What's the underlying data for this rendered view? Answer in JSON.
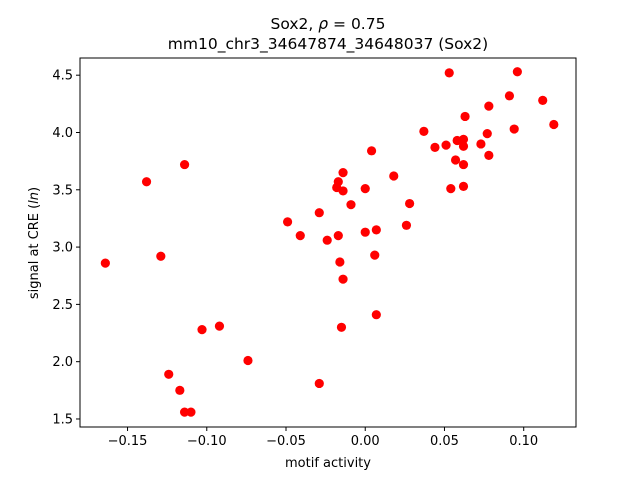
{
  "chart_data": {
    "type": "scatter",
    "title_prefix": "Sox2, ",
    "title_rho_symbol": "ρ",
    "title_rho_value": " = 0.75",
    "subtitle": "mm10_chr3_34647874_34648037 (Sox2)",
    "xlabel": "motif activity",
    "ylabel_prefix": "signal at CRE (",
    "ylabel_italic": "ln",
    "ylabel_suffix": ")",
    "xlim": [
      -0.18,
      0.133
    ],
    "ylim": [
      1.43,
      4.65
    ],
    "xticks": [
      {
        "value": -0.15,
        "label": "−0.15"
      },
      {
        "value": -0.1,
        "label": "−0.10"
      },
      {
        "value": -0.05,
        "label": "−0.05"
      },
      {
        "value": 0.0,
        "label": "0.00"
      },
      {
        "value": 0.05,
        "label": "0.05"
      },
      {
        "value": 0.1,
        "label": "0.10"
      }
    ],
    "yticks": [
      {
        "value": 1.5,
        "label": "1.5"
      },
      {
        "value": 2.0,
        "label": "2.0"
      },
      {
        "value": 2.5,
        "label": "2.5"
      },
      {
        "value": 3.0,
        "label": "3.0"
      },
      {
        "value": 3.5,
        "label": "3.5"
      },
      {
        "value": 4.0,
        "label": "4.0"
      },
      {
        "value": 4.5,
        "label": "4.5"
      }
    ],
    "grid": false,
    "legend": "none",
    "marker_color": "#ff0000",
    "points": [
      {
        "x": -0.164,
        "y": 2.86
      },
      {
        "x": -0.138,
        "y": 3.57
      },
      {
        "x": -0.129,
        "y": 2.92
      },
      {
        "x": -0.124,
        "y": 1.89
      },
      {
        "x": -0.117,
        "y": 1.75
      },
      {
        "x": -0.114,
        "y": 3.72
      },
      {
        "x": -0.114,
        "y": 1.56
      },
      {
        "x": -0.11,
        "y": 1.56
      },
      {
        "x": -0.103,
        "y": 2.28
      },
      {
        "x": -0.092,
        "y": 2.31
      },
      {
        "x": -0.074,
        "y": 2.01
      },
      {
        "x": -0.049,
        "y": 3.22
      },
      {
        "x": -0.041,
        "y": 3.1
      },
      {
        "x": -0.029,
        "y": 3.3
      },
      {
        "x": -0.029,
        "y": 1.81
      },
      {
        "x": -0.024,
        "y": 3.06
      },
      {
        "x": -0.018,
        "y": 3.52
      },
      {
        "x": -0.017,
        "y": 3.57
      },
      {
        "x": -0.017,
        "y": 3.1
      },
      {
        "x": -0.016,
        "y": 2.87
      },
      {
        "x": -0.014,
        "y": 3.65
      },
      {
        "x": -0.014,
        "y": 3.49
      },
      {
        "x": -0.014,
        "y": 2.72
      },
      {
        "x": -0.015,
        "y": 2.3
      },
      {
        "x": -0.009,
        "y": 3.37
      },
      {
        "x": 0.0,
        "y": 3.51
      },
      {
        "x": 0.0,
        "y": 3.13
      },
      {
        "x": 0.004,
        "y": 3.84
      },
      {
        "x": 0.006,
        "y": 2.93
      },
      {
        "x": 0.007,
        "y": 3.15
      },
      {
        "x": 0.007,
        "y": 2.41
      },
      {
        "x": 0.018,
        "y": 3.62
      },
      {
        "x": 0.026,
        "y": 3.19
      },
      {
        "x": 0.028,
        "y": 3.38
      },
      {
        "x": 0.037,
        "y": 4.01
      },
      {
        "x": 0.044,
        "y": 3.87
      },
      {
        "x": 0.051,
        "y": 3.89
      },
      {
        "x": 0.053,
        "y": 4.52
      },
      {
        "x": 0.054,
        "y": 3.51
      },
      {
        "x": 0.057,
        "y": 3.76
      },
      {
        "x": 0.058,
        "y": 3.93
      },
      {
        "x": 0.062,
        "y": 3.94
      },
      {
        "x": 0.062,
        "y": 3.88
      },
      {
        "x": 0.062,
        "y": 3.72
      },
      {
        "x": 0.062,
        "y": 3.53
      },
      {
        "x": 0.063,
        "y": 4.14
      },
      {
        "x": 0.073,
        "y": 3.9
      },
      {
        "x": 0.077,
        "y": 3.99
      },
      {
        "x": 0.078,
        "y": 3.8
      },
      {
        "x": 0.078,
        "y": 4.23
      },
      {
        "x": 0.091,
        "y": 4.32
      },
      {
        "x": 0.094,
        "y": 4.03
      },
      {
        "x": 0.096,
        "y": 4.53
      },
      {
        "x": 0.112,
        "y": 4.28
      },
      {
        "x": 0.119,
        "y": 4.07
      }
    ]
  }
}
